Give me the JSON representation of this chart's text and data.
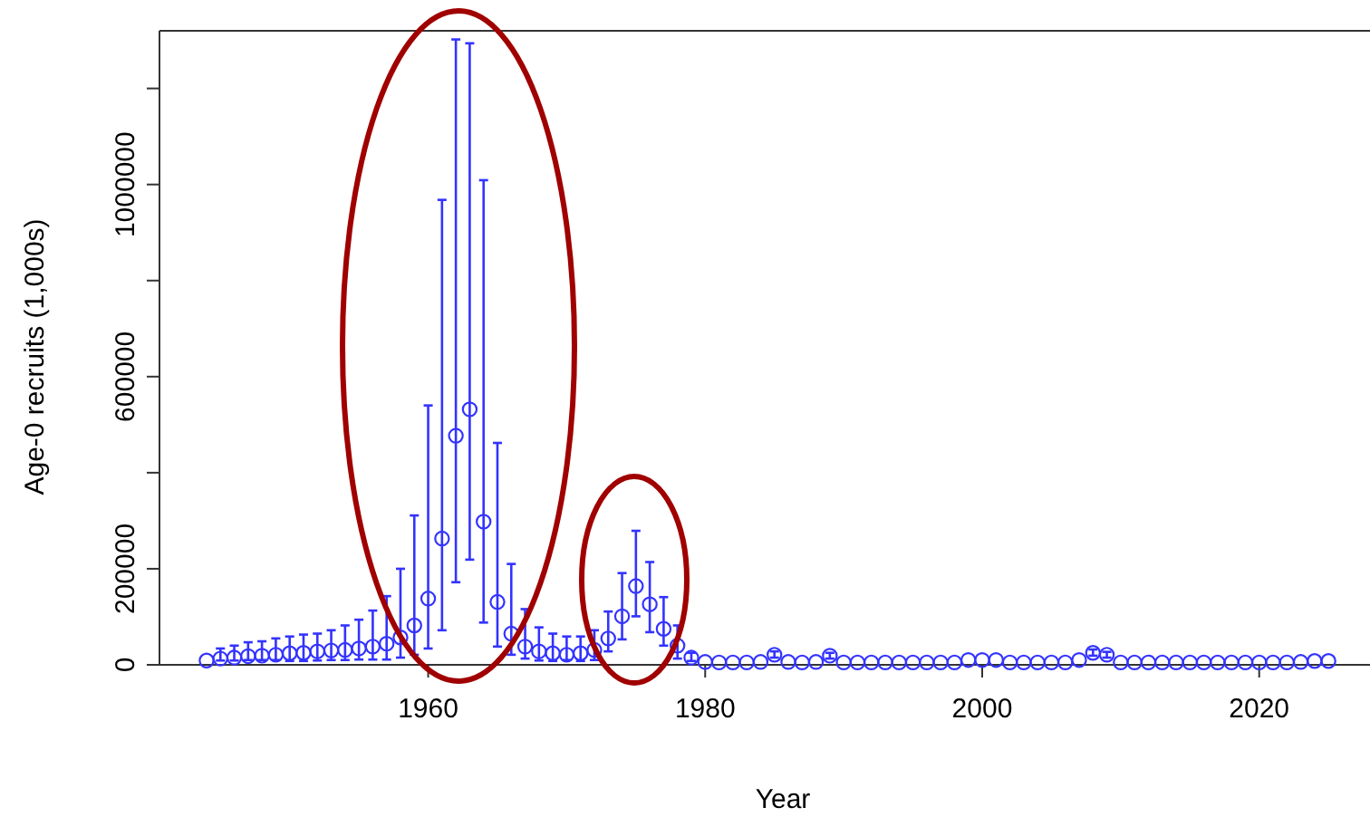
{
  "chart_data": {
    "type": "scatter",
    "xlabel": "Year",
    "ylabel": "Age-0 recruits (1,000s)",
    "xlim": [
      1940.6,
      2028
    ],
    "ylim": [
      0,
      1320000
    ],
    "xticks": [
      1960,
      1980,
      2000,
      2020
    ],
    "yticks": [
      0,
      200000,
      {
        "value": 400000,
        "label": null
      },
      600000,
      {
        "value": 800000,
        "label": null
      },
      1000000,
      {
        "value": 1200000,
        "label": null
      }
    ],
    "marker": "circle",
    "grid": false,
    "x": [
      1944,
      1945,
      1946,
      1947,
      1948,
      1949,
      1950,
      1951,
      1952,
      1953,
      1954,
      1955,
      1956,
      1957,
      1958,
      1959,
      1960,
      1961,
      1962,
      1963,
      1964,
      1965,
      1966,
      1967,
      1968,
      1969,
      1970,
      1971,
      1972,
      1973,
      1974,
      1975,
      1976,
      1977,
      1978,
      1979,
      1980,
      1981,
      1982,
      1983,
      1984,
      1985,
      1986,
      1987,
      1988,
      1989,
      1990,
      1991,
      1992,
      1993,
      1994,
      1995,
      1996,
      1997,
      1998,
      1999,
      2000,
      2001,
      2002,
      2003,
      2004,
      2005,
      2006,
      2007,
      2008,
      2009,
      2010,
      2011,
      2012,
      2013,
      2014,
      2015,
      2016,
      2017,
      2018,
      2019,
      2020,
      2021,
      2022,
      2023,
      2024,
      2025
    ],
    "series": [
      {
        "color": "#3333ff",
        "values": [
          9000,
          13000,
          15000,
          18000,
          19000,
          21000,
          24000,
          25000,
          28000,
          30000,
          31000,
          34000,
          38000,
          44000,
          57000,
          82000,
          138000,
          263000,
          477000,
          532000,
          298000,
          131000,
          65000,
          38000,
          28000,
          24000,
          21000,
          24000,
          31000,
          55000,
          101000,
          164000,
          126000,
          75000,
          40000,
          15000,
          6000,
          5000,
          5000,
          5000,
          6000,
          21000,
          6000,
          5000,
          6000,
          19000,
          5000,
          5000,
          5000,
          5000,
          5000,
          5000,
          5000,
          5000,
          5000,
          10000,
          10000,
          10000,
          5000,
          5000,
          5000,
          5000,
          5000,
          10000,
          25000,
          21000,
          5000,
          5000,
          5000,
          5000,
          5000,
          5000,
          5000,
          5000,
          5000,
          5000,
          5000,
          5000,
          5000,
          6000,
          8000,
          8000
        ],
        "errors": [
          null,
          [
            9000,
            34000
          ],
          [
            9000,
            40000
          ],
          [
            10000,
            47000
          ],
          [
            10000,
            49000
          ],
          [
            10000,
            55000
          ],
          [
            8000,
            59000
          ],
          [
            8000,
            63000
          ],
          [
            9000,
            65000
          ],
          [
            10000,
            72000
          ],
          [
            10000,
            82000
          ],
          [
            11000,
            94000
          ],
          [
            11000,
            113000
          ],
          [
            11000,
            143000
          ],
          [
            15000,
            200000
          ],
          [
            21000,
            311000
          ],
          [
            34000,
            540000
          ],
          [
            72000,
            968000
          ],
          [
            172000,
            1302000
          ],
          [
            219000,
            1294000
          ],
          [
            88000,
            1009000
          ],
          [
            38000,
            462000
          ],
          [
            21000,
            210000
          ],
          [
            13000,
            116000
          ],
          [
            9000,
            78000
          ],
          [
            8000,
            65000
          ],
          [
            10000,
            59000
          ],
          [
            8000,
            59000
          ],
          [
            10000,
            72000
          ],
          [
            28000,
            111000
          ],
          [
            53000,
            191000
          ],
          [
            101000,
            279000
          ],
          [
            68000,
            214000
          ],
          [
            40000,
            141000
          ],
          [
            13000,
            82000
          ],
          [
            8000,
            25000
          ],
          null,
          null,
          null,
          null,
          null,
          [
            15000,
            28000
          ],
          null,
          null,
          null,
          [
            13000,
            25000
          ],
          null,
          null,
          null,
          null,
          null,
          null,
          null,
          null,
          null,
          null,
          null,
          null,
          null,
          null,
          null,
          null,
          null,
          null,
          [
            19000,
            32000
          ],
          [
            15000,
            27000
          ],
          null,
          null,
          null,
          null,
          null,
          null,
          null,
          null,
          null,
          null,
          null,
          null,
          null,
          null,
          null,
          null
        ]
      }
    ]
  }
}
